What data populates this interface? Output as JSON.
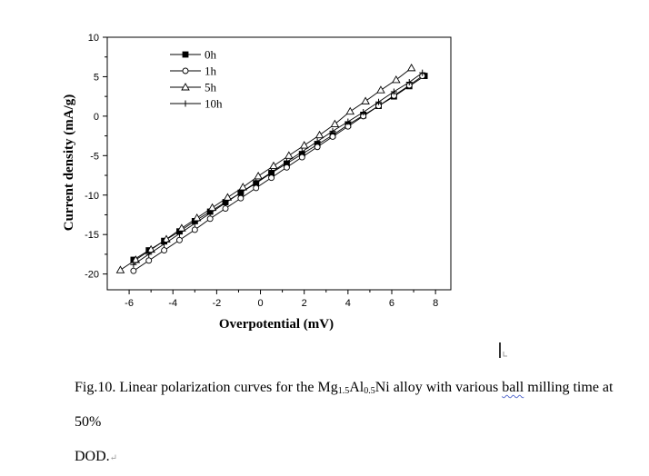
{
  "chart_data": {
    "type": "line",
    "title": "",
    "xlabel": "Overpotential (mV)",
    "ylabel": "Current density (mA/g)",
    "xlim": [
      -7,
      8.7
    ],
    "ylim": [
      -22,
      10
    ],
    "xticks": [
      -6,
      -4,
      -2,
      0,
      2,
      4,
      6,
      8
    ],
    "yticks": [
      10,
      5,
      0,
      -5,
      -10,
      -15,
      -20
    ],
    "grid": false,
    "legend_position": "top-left",
    "series": [
      {
        "name": "0h",
        "marker": "filled-square",
        "x": [
          -5.8,
          -5.1,
          -4.4,
          -3.7,
          -3.0,
          -2.3,
          -1.6,
          -0.9,
          -0.2,
          0.5,
          1.2,
          1.9,
          2.6,
          3.3,
          4.0,
          4.7,
          5.4,
          6.1,
          6.8,
          7.5
        ],
        "y": [
          -18.2,
          -17.0,
          -15.8,
          -14.6,
          -13.3,
          -12.1,
          -10.9,
          -9.7,
          -8.5,
          -7.2,
          -6.0,
          -4.8,
          -3.6,
          -2.4,
          -1.1,
          0.1,
          1.3,
          2.5,
          3.8,
          5.1
        ]
      },
      {
        "name": "1h",
        "marker": "open-circle",
        "x": [
          -5.8,
          -5.1,
          -4.4,
          -3.7,
          -3.0,
          -2.3,
          -1.6,
          -0.9,
          -0.2,
          0.5,
          1.2,
          1.9,
          2.6,
          3.3,
          4.0,
          4.7,
          5.4,
          6.1,
          6.8,
          7.4
        ],
        "y": [
          -19.6,
          -18.3,
          -17.0,
          -15.7,
          -14.4,
          -13.0,
          -11.7,
          -10.4,
          -9.1,
          -7.8,
          -6.5,
          -5.2,
          -3.9,
          -2.6,
          -1.3,
          0.0,
          1.3,
          2.6,
          3.9,
          5.1
        ]
      },
      {
        "name": "5h",
        "marker": "open-triangle",
        "x": [
          -6.4,
          -5.7,
          -5.0,
          -4.3,
          -3.6,
          -2.9,
          -2.2,
          -1.5,
          -0.8,
          -0.1,
          0.6,
          1.3,
          2.0,
          2.7,
          3.4,
          4.1,
          4.8,
          5.5,
          6.2,
          6.9
        ],
        "y": [
          -19.5,
          -18.2,
          -16.9,
          -15.6,
          -14.2,
          -12.9,
          -11.6,
          -10.3,
          -9.0,
          -7.6,
          -6.3,
          -5.0,
          -3.7,
          -2.4,
          -1.0,
          0.6,
          1.9,
          3.3,
          4.6,
          6.1
        ]
      },
      {
        "name": "10h",
        "marker": "plus",
        "x": [
          -5.8,
          -5.1,
          -4.4,
          -3.7,
          -3.0,
          -2.3,
          -1.6,
          -0.9,
          -0.2,
          0.5,
          1.2,
          1.9,
          2.6,
          3.3,
          4.0,
          4.7,
          5.4,
          6.1,
          6.8,
          7.4
        ],
        "y": [
          -18.8,
          -17.5,
          -16.2,
          -14.9,
          -13.6,
          -12.3,
          -11.0,
          -9.7,
          -8.4,
          -7.1,
          -5.8,
          -4.5,
          -3.2,
          -1.9,
          -0.7,
          0.5,
          1.8,
          3.1,
          4.3,
          5.5
        ]
      }
    ]
  },
  "caption": {
    "prefix": "Fig.10. Linear polarization curves for the Mg",
    "sub1": "1.5",
    "mid1": "Al",
    "sub2": "0.5",
    "mid2": "Ni alloy with various ",
    "squiggle": "ball",
    "suffix": " milling time at 50%",
    "line2": "DOD.",
    "para_mark": "↵"
  }
}
